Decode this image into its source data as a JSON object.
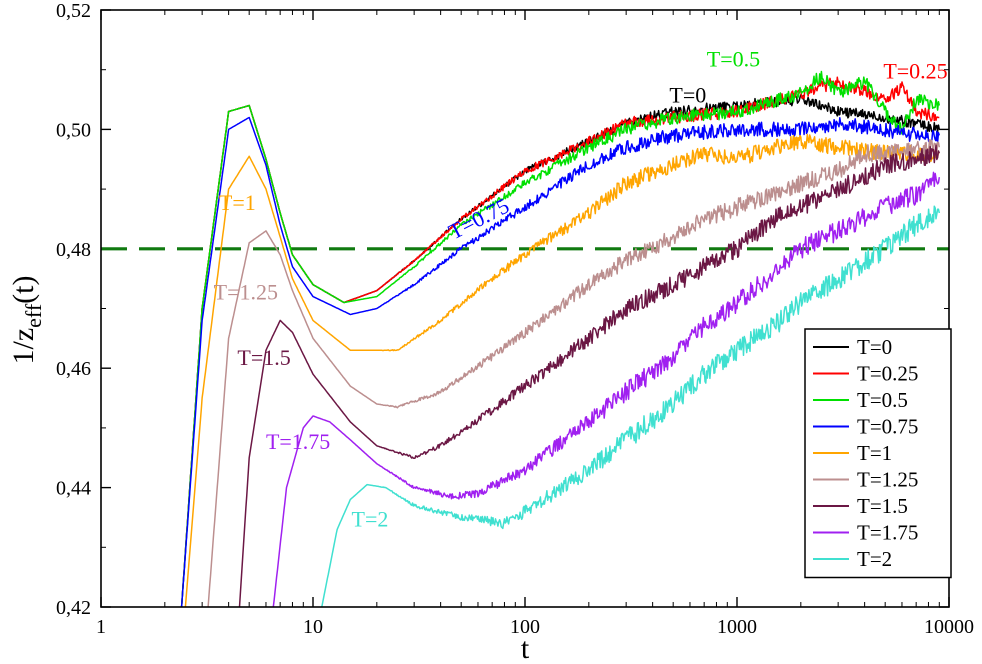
{
  "chart_data": {
    "type": "line",
    "xscale": "log",
    "xlim": [
      1,
      10000
    ],
    "ylim": [
      0.42,
      0.52
    ],
    "xlabel": "t",
    "ylabel_main": "1/z",
    "ylabel_sub": "eff",
    "ylabel_tail": "(t)",
    "x_ticks": [
      {
        "value": 1,
        "label": "1"
      },
      {
        "value": 10,
        "label": "10"
      },
      {
        "value": 100,
        "label": "100"
      },
      {
        "value": 1000,
        "label": "1000"
      },
      {
        "value": 10000,
        "label": "10000"
      }
    ],
    "y_ticks": [
      {
        "value": 0.42,
        "label": "0,42"
      },
      {
        "value": 0.44,
        "label": "0,44"
      },
      {
        "value": 0.46,
        "label": "0,46"
      },
      {
        "value": 0.48,
        "label": "0,48"
      },
      {
        "value": 0.5,
        "label": "0,50"
      },
      {
        "value": 0.52,
        "label": "0,52"
      }
    ],
    "reference_line": {
      "y": 0.48,
      "color": "#107a10",
      "style": "dashed"
    },
    "series": [
      {
        "name": "T=0",
        "color": "#000000",
        "label": "T=0",
        "points": [
          [
            2.4,
            0.42
          ],
          [
            3,
            0.47
          ],
          [
            4,
            0.503
          ],
          [
            5,
            0.504
          ],
          [
            6,
            0.495
          ],
          [
            7,
            0.486
          ],
          [
            8,
            0.479
          ],
          [
            10,
            0.474
          ],
          [
            14,
            0.471
          ],
          [
            20,
            0.473
          ],
          [
            30,
            0.478
          ],
          [
            50,
            0.485
          ],
          [
            100,
            0.493
          ],
          [
            200,
            0.498
          ],
          [
            300,
            0.501
          ],
          [
            500,
            0.503
          ],
          [
            1000,
            0.504
          ],
          [
            2000,
            0.505
          ],
          [
            3000,
            0.503
          ],
          [
            5000,
            0.502
          ],
          [
            7000,
            0.501
          ],
          [
            9000,
            0.5
          ]
        ]
      },
      {
        "name": "T=0.25",
        "color": "#ff0000",
        "label": "T=0.25",
        "points": [
          [
            2.4,
            0.42
          ],
          [
            3,
            0.47
          ],
          [
            4,
            0.503
          ],
          [
            5,
            0.504
          ],
          [
            6,
            0.495
          ],
          [
            7,
            0.486
          ],
          [
            8,
            0.479
          ],
          [
            10,
            0.474
          ],
          [
            14,
            0.471
          ],
          [
            20,
            0.473
          ],
          [
            30,
            0.478
          ],
          [
            50,
            0.485
          ],
          [
            100,
            0.493
          ],
          [
            200,
            0.498
          ],
          [
            300,
            0.501
          ],
          [
            500,
            0.502
          ],
          [
            1000,
            0.503
          ],
          [
            2000,
            0.506
          ],
          [
            3000,
            0.508
          ],
          [
            5000,
            0.505
          ],
          [
            6000,
            0.507
          ],
          [
            7000,
            0.503
          ],
          [
            9000,
            0.502
          ]
        ]
      },
      {
        "name": "T=0.5",
        "color": "#00e000",
        "label": "T=0.5",
        "points": [
          [
            2.4,
            0.42
          ],
          [
            3,
            0.47
          ],
          [
            4,
            0.503
          ],
          [
            5,
            0.504
          ],
          [
            6,
            0.495
          ],
          [
            7,
            0.486
          ],
          [
            8,
            0.479
          ],
          [
            10,
            0.474
          ],
          [
            14,
            0.471
          ],
          [
            20,
            0.472
          ],
          [
            30,
            0.477
          ],
          [
            50,
            0.484
          ],
          [
            100,
            0.491
          ],
          [
            200,
            0.497
          ],
          [
            300,
            0.5
          ],
          [
            500,
            0.502
          ],
          [
            1000,
            0.503
          ],
          [
            2000,
            0.506
          ],
          [
            2500,
            0.509
          ],
          [
            3000,
            0.506
          ],
          [
            4000,
            0.508
          ],
          [
            5000,
            0.503
          ],
          [
            6000,
            0.5
          ],
          [
            7000,
            0.505
          ],
          [
            9000,
            0.504
          ]
        ]
      },
      {
        "name": "T=0.75",
        "color": "#0000ff",
        "label": "T=0.75",
        "points": [
          [
            2.4,
            0.42
          ],
          [
            3,
            0.468
          ],
          [
            4,
            0.5
          ],
          [
            5,
            0.502
          ],
          [
            6,
            0.494
          ],
          [
            7,
            0.484
          ],
          [
            8,
            0.477
          ],
          [
            10,
            0.472
          ],
          [
            15,
            0.469
          ],
          [
            20,
            0.47
          ],
          [
            30,
            0.474
          ],
          [
            50,
            0.48
          ],
          [
            100,
            0.487
          ],
          [
            200,
            0.494
          ],
          [
            300,
            0.497
          ],
          [
            500,
            0.499
          ],
          [
            1000,
            0.5
          ],
          [
            2000,
            0.5
          ],
          [
            3000,
            0.501
          ],
          [
            5000,
            0.5
          ],
          [
            7000,
            0.499
          ],
          [
            9000,
            0.499
          ]
        ]
      },
      {
        "name": "T=1",
        "color": "#ffa500",
        "label": "T=1",
        "points": [
          [
            2.5,
            0.42
          ],
          [
            3,
            0.455
          ],
          [
            4,
            0.49
          ],
          [
            5,
            0.4955
          ],
          [
            6,
            0.49
          ],
          [
            7,
            0.482
          ],
          [
            8,
            0.475
          ],
          [
            10,
            0.468
          ],
          [
            15,
            0.463
          ],
          [
            20,
            0.463
          ],
          [
            25,
            0.463
          ],
          [
            40,
            0.468
          ],
          [
            70,
            0.475
          ],
          [
            100,
            0.479
          ],
          [
            200,
            0.486
          ],
          [
            300,
            0.491
          ],
          [
            500,
            0.494
          ],
          [
            700,
            0.496
          ],
          [
            1000,
            0.495
          ],
          [
            1500,
            0.497
          ],
          [
            2000,
            0.498
          ],
          [
            3000,
            0.497
          ],
          [
            5000,
            0.496
          ],
          [
            7000,
            0.496
          ],
          [
            9000,
            0.496
          ]
        ]
      },
      {
        "name": "T=1.25",
        "color": "#bc8f8f",
        "label": "T=1.25",
        "points": [
          [
            3.2,
            0.42
          ],
          [
            4,
            0.465
          ],
          [
            5,
            0.481
          ],
          [
            6,
            0.483
          ],
          [
            7,
            0.479
          ],
          [
            8,
            0.473
          ],
          [
            10,
            0.465
          ],
          [
            15,
            0.457
          ],
          [
            20,
            0.454
          ],
          [
            25,
            0.4535
          ],
          [
            40,
            0.456
          ],
          [
            70,
            0.462
          ],
          [
            100,
            0.466
          ],
          [
            200,
            0.474
          ],
          [
            300,
            0.478
          ],
          [
            500,
            0.482
          ],
          [
            700,
            0.485
          ],
          [
            1000,
            0.487
          ],
          [
            2000,
            0.491
          ],
          [
            3000,
            0.493
          ],
          [
            4000,
            0.496
          ],
          [
            5000,
            0.496
          ],
          [
            7000,
            0.497
          ],
          [
            9000,
            0.497
          ]
        ]
      },
      {
        "name": "T=1.5",
        "color": "#6b1744",
        "label": "T=1.5",
        "points": [
          [
            4.5,
            0.42
          ],
          [
            5,
            0.445
          ],
          [
            6,
            0.463
          ],
          [
            7,
            0.468
          ],
          [
            8,
            0.466
          ],
          [
            10,
            0.459
          ],
          [
            15,
            0.451
          ],
          [
            20,
            0.447
          ],
          [
            30,
            0.445
          ],
          [
            40,
            0.447
          ],
          [
            70,
            0.453
          ],
          [
            100,
            0.457
          ],
          [
            200,
            0.465
          ],
          [
            300,
            0.47
          ],
          [
            500,
            0.474
          ],
          [
            700,
            0.477
          ],
          [
            1000,
            0.48
          ],
          [
            1500,
            0.485
          ],
          [
            2000,
            0.487
          ],
          [
            3000,
            0.49
          ],
          [
            4000,
            0.492
          ],
          [
            5000,
            0.494
          ],
          [
            7000,
            0.495
          ],
          [
            9000,
            0.496
          ]
        ]
      },
      {
        "name": "T=1.75",
        "color": "#a020f0",
        "label": "T=1.75",
        "points": [
          [
            6.5,
            0.42
          ],
          [
            7.5,
            0.44
          ],
          [
            9,
            0.45
          ],
          [
            10,
            0.452
          ],
          [
            12,
            0.451
          ],
          [
            15,
            0.448
          ],
          [
            20,
            0.444
          ],
          [
            30,
            0.44
          ],
          [
            45,
            0.4385
          ],
          [
            60,
            0.439
          ],
          [
            100,
            0.443
          ],
          [
            200,
            0.451
          ],
          [
            300,
            0.456
          ],
          [
            500,
            0.462
          ],
          [
            700,
            0.467
          ],
          [
            1000,
            0.471
          ],
          [
            1500,
            0.476
          ],
          [
            2000,
            0.48
          ],
          [
            3000,
            0.483
          ],
          [
            5000,
            0.487
          ],
          [
            7000,
            0.489
          ],
          [
            9000,
            0.492
          ]
        ]
      },
      {
        "name": "T=2",
        "color": "#40e0d0",
        "label": "T=2",
        "points": [
          [
            11,
            0.42
          ],
          [
            13,
            0.433
          ],
          [
            15,
            0.438
          ],
          [
            18,
            0.4405
          ],
          [
            22,
            0.44
          ],
          [
            30,
            0.437
          ],
          [
            50,
            0.435
          ],
          [
            80,
            0.434
          ],
          [
            100,
            0.436
          ],
          [
            150,
            0.44
          ],
          [
            200,
            0.443
          ],
          [
            300,
            0.448
          ],
          [
            500,
            0.454
          ],
          [
            700,
            0.459
          ],
          [
            1000,
            0.463
          ],
          [
            1500,
            0.467
          ],
          [
            2000,
            0.471
          ],
          [
            3000,
            0.475
          ],
          [
            5000,
            0.48
          ],
          [
            7000,
            0.484
          ],
          [
            9000,
            0.486
          ]
        ]
      }
    ],
    "annotations": [
      {
        "text": "T=0",
        "x": 480,
        "y": 0.5045,
        "color": "#000000",
        "angle": 0
      },
      {
        "text": "T=0.5",
        "x": 720,
        "y": 0.5105,
        "color": "#00e000",
        "angle": 0
      },
      {
        "text": "T=0.25",
        "x": 4900,
        "y": 0.5085,
        "color": "#ff0000",
        "angle": 0
      },
      {
        "text": "T=0.75",
        "x": 46,
        "y": 0.4815,
        "color": "#0000ff",
        "angle": -27
      },
      {
        "text": "T=1",
        "x": 3.6,
        "y": 0.4865,
        "color": "#ffa500",
        "angle": 0
      },
      {
        "text": "T=1.25",
        "x": 3.4,
        "y": 0.4715,
        "color": "#bc8f8f",
        "angle": 0
      },
      {
        "text": "T=1.5",
        "x": 4.4,
        "y": 0.4605,
        "color": "#6b1744",
        "angle": 0
      },
      {
        "text": "T=1.75",
        "x": 6.0,
        "y": 0.4465,
        "color": "#a020f0",
        "angle": 0
      },
      {
        "text": "T=2",
        "x": 15.2,
        "y": 0.4335,
        "color": "#40e0d0",
        "angle": 0
      }
    ],
    "legend": {
      "position": "bottom-right",
      "entries": [
        {
          "label": "T=0",
          "color": "#000000"
        },
        {
          "label": "T=0.25",
          "color": "#ff0000"
        },
        {
          "label": "T=0.5",
          "color": "#00e000"
        },
        {
          "label": "T=0.75",
          "color": "#0000ff"
        },
        {
          "label": "T=1",
          "color": "#ffa500"
        },
        {
          "label": "T=1.25",
          "color": "#bc8f8f"
        },
        {
          "label": "T=1.5",
          "color": "#6b1744"
        },
        {
          "label": "T=1.75",
          "color": "#a020f0"
        },
        {
          "label": "T=2",
          "color": "#40e0d0"
        }
      ]
    }
  }
}
